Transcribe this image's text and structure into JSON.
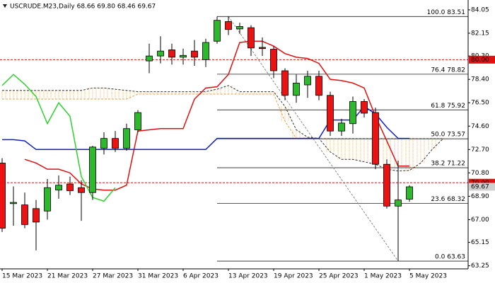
{
  "chart_data": {
    "type": "candlestick",
    "title": "USCRUDE.M23,Daily  68.66 69.80 68.46 69.67",
    "categories": [
      "15 Mar 2023",
      null,
      null,
      null,
      "21 Mar 2023",
      null,
      null,
      null,
      "27 Mar 2023",
      null,
      null,
      null,
      "31 Mar 2023",
      null,
      null,
      null,
      "6 Apr 2023",
      null,
      null,
      null,
      "13 Apr 2023",
      null,
      null,
      null,
      "19 Apr 2023",
      null,
      null,
      null,
      "25 Apr 2023",
      null,
      null,
      null,
      "1 May 2023",
      null,
      null,
      null,
      "5 May 2023",
      null,
      null,
      null
    ],
    "open": [
      71.6,
      68.3,
      68.2,
      67.9,
      67.7,
      69.4,
      69.9,
      69.6,
      69.2,
      72.8,
      73.6,
      72.8,
      74.3,
      79.9,
      80.3,
      80.8,
      80.2,
      80.7,
      80.0,
      81.5,
      83.1,
      82.5,
      82.6,
      81.0,
      80.85,
      79.1,
      77.1,
      77.95,
      78.65,
      77.1,
      74.2,
      74.8,
      76.6,
      75.7,
      71.5,
      68.1,
      68.66,
      null,
      null,
      null
    ],
    "high": [
      72.0,
      69.7,
      69.2,
      68.6,
      70.3,
      70.6,
      70.5,
      70.2,
      73.0,
      74.1,
      74.2,
      74.8,
      75.9,
      81.3,
      81.9,
      81.3,
      80.9,
      81.6,
      81.7,
      83.5,
      83.51,
      83.0,
      82.8,
      81.8,
      81.1,
      79.3,
      78.8,
      79.1,
      79.1,
      77.4,
      75.2,
      77.0,
      76.8,
      76.1,
      71.9,
      71.8,
      69.8,
      null,
      null,
      null
    ],
    "low": [
      66.0,
      66.5,
      66.3,
      64.5,
      67.0,
      68.7,
      69.0,
      66.9,
      68.6,
      72.3,
      72.5,
      72.6,
      74.1,
      78.9,
      79.7,
      79.6,
      79.6,
      79.5,
      79.4,
      81.3,
      82.0,
      82.1,
      80.3,
      80.3,
      78.5,
      76.7,
      76.5,
      76.9,
      76.7,
      73.8,
      73.8,
      74.0,
      75.3,
      71.1,
      67.9,
      63.63,
      68.46,
      null,
      null,
      null
    ],
    "close": [
      66.3,
      68.4,
      66.6,
      66.8,
      69.6,
      69.8,
      69.35,
      69.2,
      72.9,
      73.6,
      72.8,
      74.4,
      75.7,
      80.3,
      80.7,
      80.2,
      80.35,
      80.2,
      81.4,
      83.2,
      82.45,
      82.7,
      80.95,
      80.9,
      79.1,
      77.1,
      78.1,
      78.65,
      77.1,
      74.2,
      74.85,
      76.6,
      75.65,
      71.5,
      68.1,
      68.6,
      69.67,
      null,
      null,
      null
    ],
    "up_color": "#2db82d",
    "down_color": "#ee1111",
    "lines": [
      {
        "color": "#e01010",
        "values": [
          null,
          null,
          71.9,
          71.6,
          71.1,
          71.1,
          70.8,
          69.9,
          69.5,
          69.4,
          69.4,
          69.8,
          74.2,
          74.3,
          74.4,
          74.4,
          74.4,
          76.8,
          77.7,
          77.8,
          78.8,
          81.4,
          81.5,
          81.5,
          81.1,
          80.5,
          80.2,
          80.1,
          79.7,
          78.4,
          78.3,
          78.1,
          77.7,
          75.4,
          73.4,
          71.35,
          71.35,
          null,
          null,
          null
        ]
      },
      {
        "color": "#1020d0",
        "values": [
          73.5,
          73.5,
          73.4,
          72.7,
          72.7,
          72.7,
          72.7,
          72.7,
          72.7,
          72.7,
          72.7,
          72.7,
          72.7,
          72.7,
          72.7,
          72.7,
          72.7,
          72.7,
          72.7,
          73.6,
          73.6,
          73.6,
          73.6,
          73.6,
          73.6,
          73.6,
          73.6,
          73.6,
          73.6,
          75.1,
          75.1,
          75.1,
          76.2,
          75.6,
          74.5,
          73.6,
          73.6,
          null,
          null,
          null
        ]
      },
      {
        "color": "#30d030",
        "values": [
          77.9,
          78.8,
          78.0,
          77.0,
          74.8,
          76.5,
          75.4,
          70.5,
          68.8,
          68.5,
          69.6,
          null,
          null,
          null,
          null,
          null,
          null,
          null,
          null,
          null,
          null,
          null,
          null,
          null,
          null,
          null,
          null,
          null,
          null,
          null,
          null,
          null,
          null,
          null,
          null,
          null,
          null,
          null,
          null,
          null
        ]
      }
    ],
    "cloud": {
      "span_a": {
        "color": "#333333",
        "values": [
          77.5,
          77.5,
          77.5,
          77.5,
          77.5,
          77.5,
          77.5,
          77.5,
          77.7,
          77.7,
          77.6,
          77.5,
          77.4,
          77.4,
          77.4,
          77.4,
          77.4,
          77.4,
          77.4,
          77.6,
          77.9,
          77.4,
          77.4,
          77.4,
          77.4,
          76.2,
          74.3,
          73.7,
          73.6,
          72.5,
          71.9,
          71.9,
          71.7,
          71.5,
          71.1,
          70.95,
          71.0,
          71.6,
          72.7,
          73.6
        ]
      },
      "span_b": {
        "color": "#e8a040",
        "values": [
          76.8,
          76.8,
          76.8,
          76.8,
          76.8,
          76.8,
          76.8,
          76.8,
          76.8,
          76.8,
          76.8,
          76.8,
          77.2,
          77.2,
          77.2,
          77.2,
          77.2,
          77.2,
          77.2,
          77.2,
          77.2,
          77.2,
          77.2,
          77.2,
          77.2,
          75.0,
          73.6,
          73.6,
          73.6,
          73.6,
          73.6,
          73.6,
          73.6,
          73.6,
          73.6,
          73.6,
          73.6,
          73.6,
          73.6,
          73.6
        ]
      }
    },
    "levels": [
      {
        "value": 83.51,
        "label": "100.0 83.51"
      },
      {
        "value": 78.82,
        "label": "76.4 78.82"
      },
      {
        "value": 75.92,
        "label": "61.8 75.92"
      },
      {
        "value": 73.57,
        "label": "50.0 73.57"
      },
      {
        "value": 71.22,
        "label": "38.2 71.22"
      },
      {
        "value": 68.32,
        "label": "23.6 68.32"
      },
      {
        "value": 63.63,
        "label": "0.0 63.63"
      }
    ],
    "level_color": "#222222",
    "hlines": [
      {
        "value": 80,
        "label": "80.00",
        "color": "#e01010"
      },
      {
        "value": 70,
        "label": "70.00",
        "color": "#e01010"
      }
    ],
    "last": 69.67,
    "ylim": [
      63.0,
      84.85
    ],
    "yticks": [
      84.05,
      82.15,
      {
        "value": 80.3,
        "label": "80.30"
      },
      {
        "value": 78.4,
        "label": "78.40"
      },
      {
        "value": 76.5,
        "label": "76.50"
      },
      {
        "value": 74.6,
        "label": "74.60"
      },
      {
        "value": 72.7,
        "label": "72.70"
      },
      {
        "value": 70.8,
        "label": "70.80"
      },
      {
        "value": 68.9,
        "label": "68.90"
      },
      {
        "value": 67.0,
        "label": "67.00"
      },
      65.15,
      63.25
    ],
    "grid": false
  }
}
